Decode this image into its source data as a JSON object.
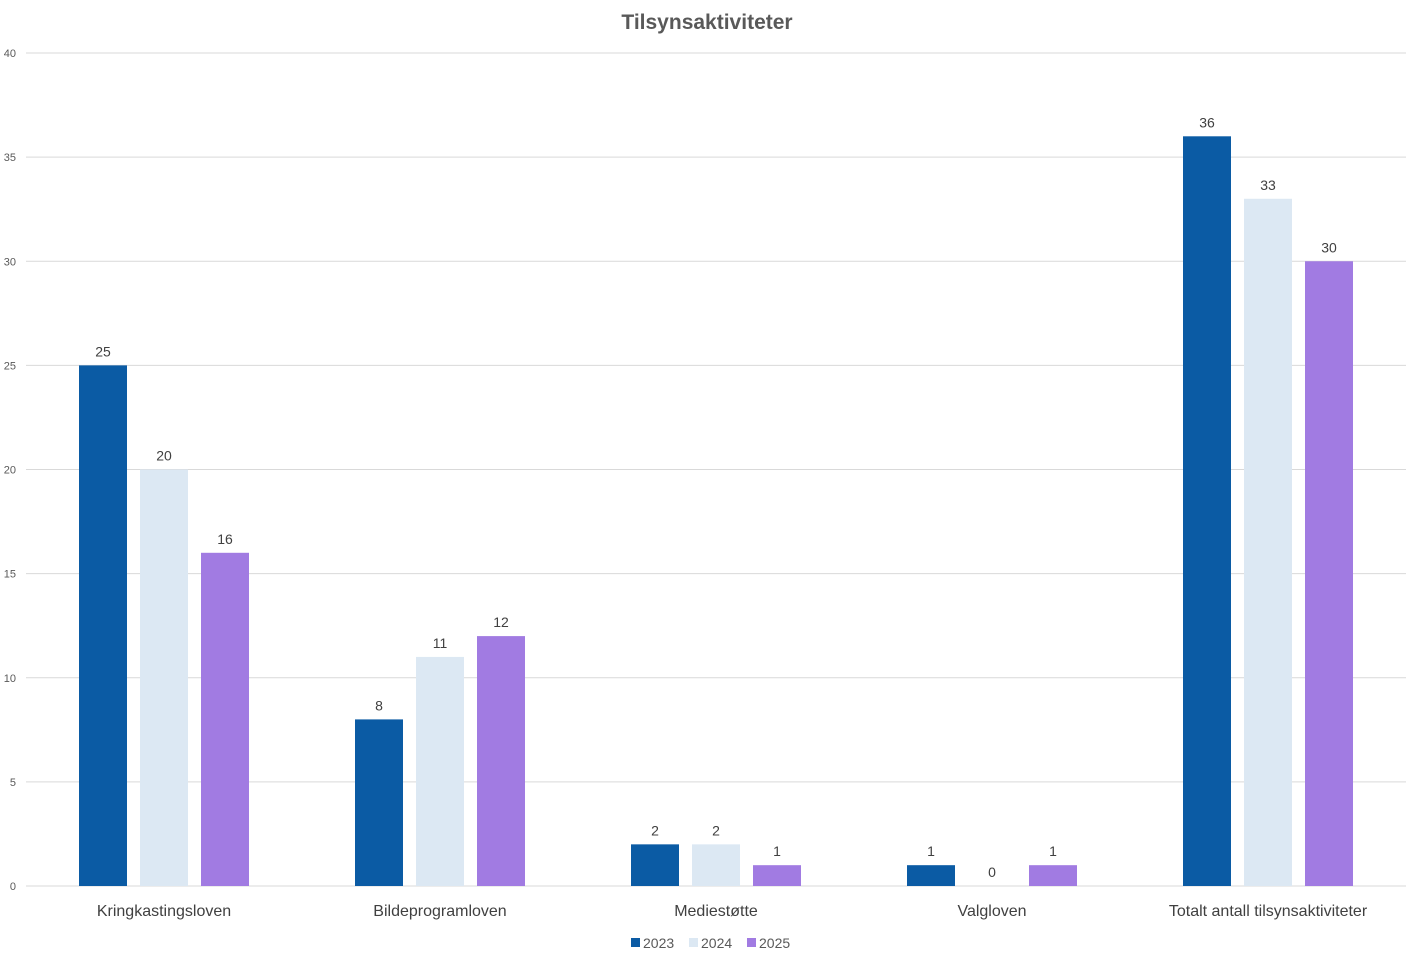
{
  "chart_data": {
    "type": "bar",
    "title": "Tilsynsaktiviteter",
    "xlabel": "",
    "ylabel": "",
    "categories": [
      "Kringkastingsloven",
      "Bildeprogramloven",
      "Mediestøtte",
      "Valgloven",
      "Totalt antall tilsynsaktiviteter"
    ],
    "series": [
      {
        "name": "2023",
        "values": [
          25,
          8,
          2,
          1,
          36
        ],
        "color": "#0b5ba4"
      },
      {
        "name": "2024",
        "values": [
          20,
          11,
          2,
          0,
          33
        ],
        "color": "#dce8f3"
      },
      {
        "name": "2025",
        "values": [
          16,
          12,
          1,
          1,
          30
        ],
        "color": "#a17be2"
      }
    ],
    "ylim": [
      0,
      40
    ],
    "yticks": [
      0,
      5,
      10,
      15,
      20,
      25,
      30,
      35,
      40
    ],
    "grid": true,
    "legend_position": "bottom",
    "data_labels": true
  }
}
